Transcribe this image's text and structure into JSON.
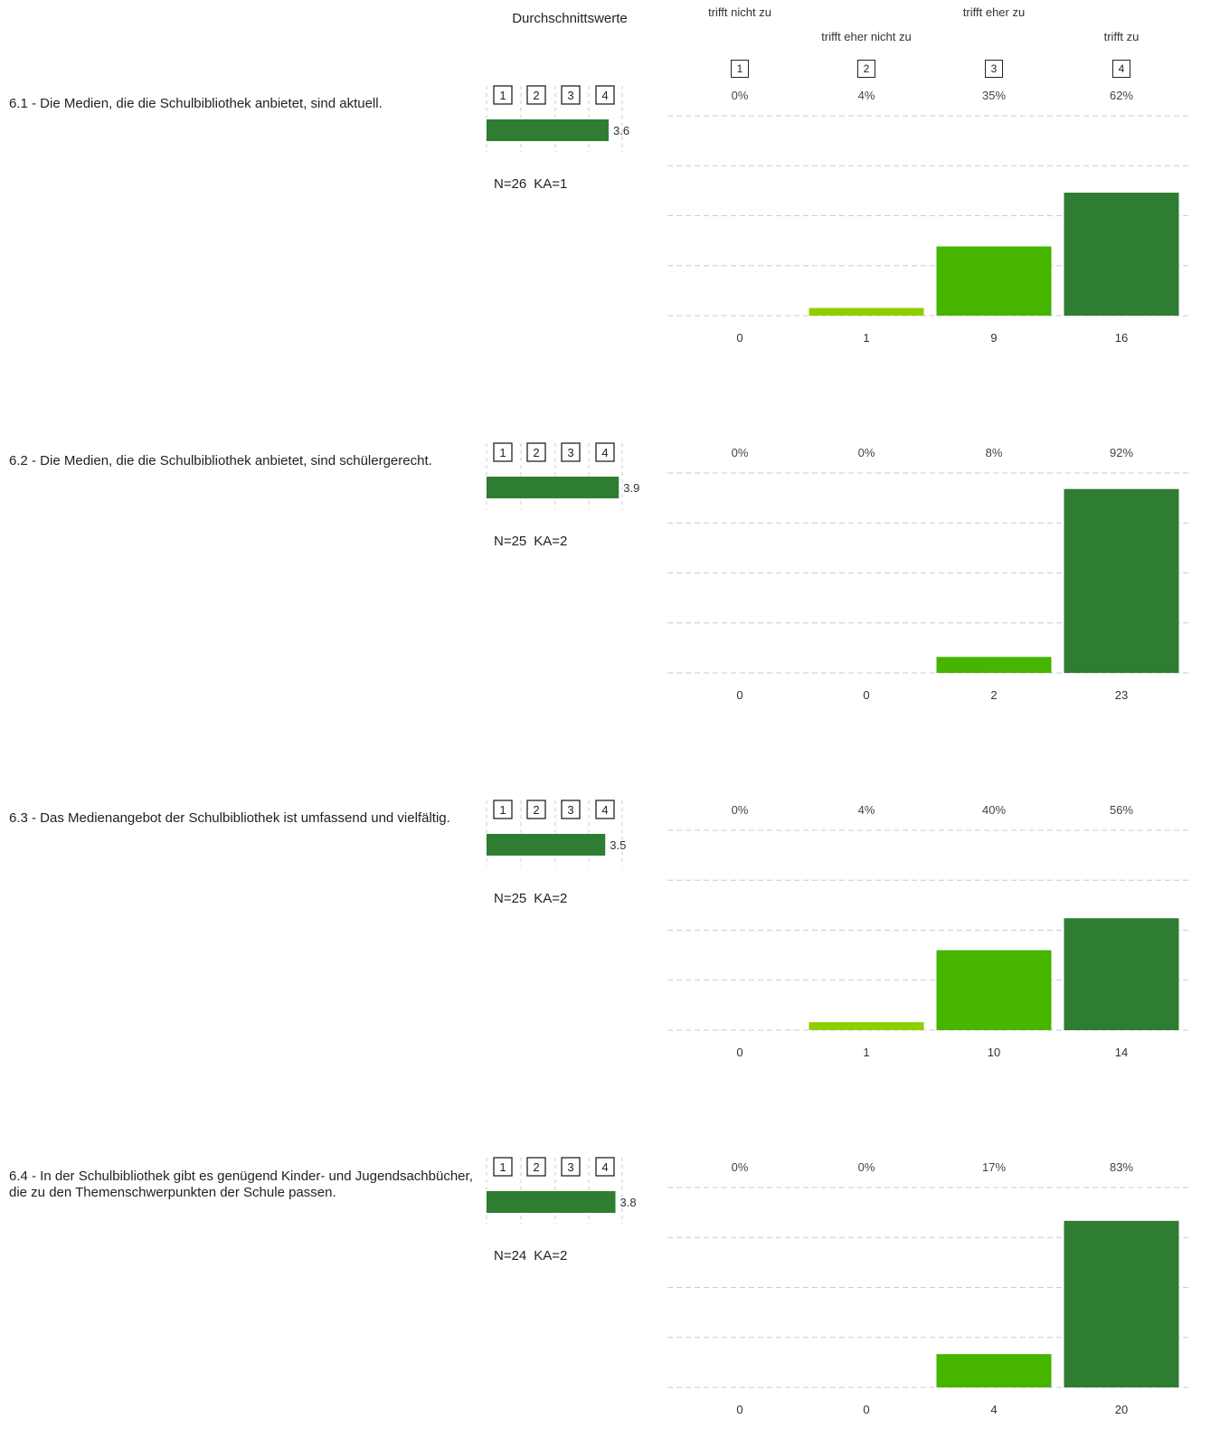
{
  "header": {
    "average_title": "Durchschnittswerte",
    "categories": [
      {
        "label": "trifft nicht zu",
        "number": "1"
      },
      {
        "label": "trifft eher nicht zu",
        "number": "2"
      },
      {
        "label": "trifft eher zu",
        "number": "3"
      },
      {
        "label": "trifft zu",
        "number": "4"
      }
    ]
  },
  "scale_numbers": [
    "1",
    "2",
    "3",
    "4"
  ],
  "colors": {
    "dark_green": "#2e7d32",
    "mid_green": "#45b500",
    "light_green": "#8fce00",
    "grid": "#cccccc"
  },
  "questions": [
    {
      "text": "6.1 - Die Medien, die die Schulbibliothek anbietet, sind aktuell.",
      "n": "N=26",
      "ka": "KA=1",
      "avg_label": "3.6"
    },
    {
      "text": "6.2 - Die Medien, die die Schulbibliothek anbietet, sind schülergerecht.",
      "n": "N=25",
      "ka": "KA=2",
      "avg_label": "3.9"
    },
    {
      "text": "6.3 - Das Medienangebot der Schulbibliothek ist umfassend und vielfältig.",
      "n": "N=25",
      "ka": "KA=2",
      "avg_label": "3.5"
    },
    {
      "text": "6.4 - In der Schulbibliothek gibt es genügend Kinder- und Jugendsachbücher, die zu den Themenschwerpunkten der Schule passen.",
      "n": "N=24",
      "ka": "KA=2",
      "avg_label": "3.8"
    }
  ],
  "chart_data": [
    {
      "type": "bar",
      "categories": [
        "trifft nicht zu",
        "trifft eher nicht zu",
        "trifft eher zu",
        "trifft zu"
      ],
      "values": [
        0,
        1,
        9,
        16
      ],
      "percent_labels": [
        "0%",
        "4%",
        "35%",
        "62%"
      ],
      "count_labels": [
        "0",
        "1",
        "9",
        "16"
      ],
      "average": 3.6,
      "average_scale": [
        1,
        4
      ]
    },
    {
      "type": "bar",
      "categories": [
        "trifft nicht zu",
        "trifft eher nicht zu",
        "trifft eher zu",
        "trifft zu"
      ],
      "values": [
        0,
        0,
        2,
        23
      ],
      "percent_labels": [
        "0%",
        "0%",
        "8%",
        "92%"
      ],
      "count_labels": [
        "0",
        "0",
        "2",
        "23"
      ],
      "average": 3.9,
      "average_scale": [
        1,
        4
      ]
    },
    {
      "type": "bar",
      "categories": [
        "trifft nicht zu",
        "trifft eher nicht zu",
        "trifft eher zu",
        "trifft zu"
      ],
      "values": [
        0,
        1,
        10,
        14
      ],
      "percent_labels": [
        "0%",
        "4%",
        "40%",
        "56%"
      ],
      "count_labels": [
        "0",
        "1",
        "10",
        "14"
      ],
      "average": 3.5,
      "average_scale": [
        1,
        4
      ]
    },
    {
      "type": "bar",
      "categories": [
        "trifft nicht zu",
        "trifft eher nicht zu",
        "trifft eher zu",
        "trifft zu"
      ],
      "values": [
        0,
        0,
        4,
        20
      ],
      "percent_labels": [
        "0%",
        "0%",
        "17%",
        "83%"
      ],
      "count_labels": [
        "0",
        "0",
        "4",
        "20"
      ],
      "average": 3.8,
      "average_scale": [
        1,
        4
      ]
    }
  ]
}
